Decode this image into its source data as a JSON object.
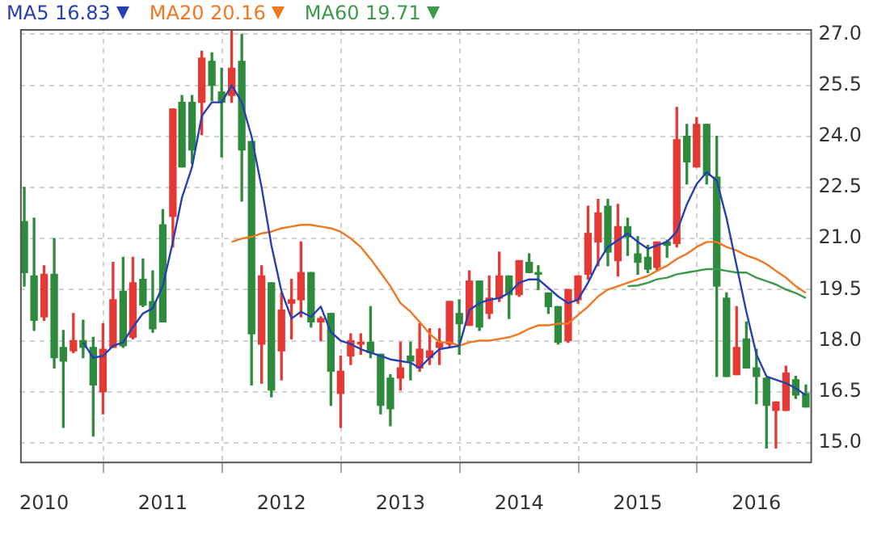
{
  "chart_data": {
    "type": "candlestick",
    "x": [
      "2009-11",
      "2009-12",
      "2010-01",
      "2010-02",
      "2010-03",
      "2010-04",
      "2010-05",
      "2010-06",
      "2010-07",
      "2010-08",
      "2010-09",
      "2010-10",
      "2010-11",
      "2010-12",
      "2011-01",
      "2011-02",
      "2011-03",
      "2011-04",
      "2011-05",
      "2011-06",
      "2011-07",
      "2011-08",
      "2011-09",
      "2011-10",
      "2011-11",
      "2011-12",
      "2012-01",
      "2012-02",
      "2012-03",
      "2012-04",
      "2012-05",
      "2012-06",
      "2012-07",
      "2012-08",
      "2012-09",
      "2012-10",
      "2012-11",
      "2012-12",
      "2013-01",
      "2013-02",
      "2013-03",
      "2013-04",
      "2013-05",
      "2013-06",
      "2013-07",
      "2013-08",
      "2013-09",
      "2013-10",
      "2013-11",
      "2013-12",
      "2014-01",
      "2014-02",
      "2014-03",
      "2014-04",
      "2014-05",
      "2014-06",
      "2014-07",
      "2014-08",
      "2014-09",
      "2014-10",
      "2014-11",
      "2014-12",
      "2015-01",
      "2015-02",
      "2015-03",
      "2015-04",
      "2015-05",
      "2015-06",
      "2015-07",
      "2015-08",
      "2015-09",
      "2015-10",
      "2015-11",
      "2015-12",
      "2016-01",
      "2016-02",
      "2016-03",
      "2016-04",
      "2016-05",
      "2016-06"
    ],
    "ohlc": [
      [
        21.5,
        22.5,
        19.6,
        20.0
      ],
      [
        19.9,
        21.6,
        18.3,
        18.6
      ],
      [
        18.7,
        20.2,
        18.6,
        19.95
      ],
      [
        19.95,
        21.0,
        17.2,
        17.5
      ],
      [
        17.8,
        18.3,
        15.45,
        17.4
      ],
      [
        17.7,
        18.8,
        17.65,
        18.0
      ],
      [
        18.0,
        18.6,
        17.5,
        17.8
      ],
      [
        17.8,
        18.1,
        15.2,
        16.7
      ],
      [
        16.5,
        18.5,
        15.85,
        17.75
      ],
      [
        17.8,
        20.3,
        17.8,
        19.2
      ],
      [
        19.45,
        20.45,
        17.8,
        17.85
      ],
      [
        18.1,
        20.45,
        18.05,
        19.7
      ],
      [
        19.8,
        20.4,
        19.0,
        19.05
      ],
      [
        19.15,
        20.05,
        18.25,
        18.35
      ],
      [
        21.4,
        21.85,
        18.55,
        18.55
      ],
      [
        21.65,
        24.8,
        20.75,
        24.8
      ],
      [
        25.0,
        25.2,
        23.1,
        23.1
      ],
      [
        25.0,
        25.2,
        23.2,
        23.6
      ],
      [
        25.0,
        26.5,
        24.05,
        26.3
      ],
      [
        26.2,
        26.45,
        25.05,
        25.5
      ],
      [
        25.3,
        26.0,
        23.4,
        25.0
      ],
      [
        25.2,
        27.1,
        25.0,
        26.0
      ],
      [
        26.2,
        27.0,
        22.1,
        23.6
      ],
      [
        23.85,
        23.85,
        16.7,
        18.2
      ],
      [
        17.9,
        20.2,
        16.75,
        19.9
      ],
      [
        19.7,
        19.7,
        16.35,
        16.55
      ],
      [
        17.7,
        19.4,
        16.85,
        18.9
      ],
      [
        19.1,
        19.8,
        18.05,
        19.2
      ],
      [
        19.2,
        20.9,
        18.7,
        20.0
      ],
      [
        20.0,
        20.0,
        18.4,
        18.55
      ],
      [
        18.55,
        18.7,
        18.0,
        18.65
      ],
      [
        18.8,
        18.8,
        16.1,
        17.1
      ],
      [
        16.45,
        17.55,
        15.45,
        17.1
      ],
      [
        17.55,
        18.2,
        17.3,
        18.0
      ],
      [
        17.9,
        18.2,
        17.6,
        17.95
      ],
      [
        17.95,
        19.0,
        17.5,
        17.65
      ],
      [
        17.6,
        17.6,
        15.85,
        16.1
      ],
      [
        16.9,
        17.0,
        15.5,
        16.0
      ],
      [
        16.9,
        17.95,
        16.55,
        17.2
      ],
      [
        17.55,
        17.95,
        16.85,
        17.4
      ],
      [
        17.2,
        18.5,
        17.1,
        17.75
      ],
      [
        17.5,
        18.35,
        17.3,
        17.7
      ],
      [
        17.8,
        18.35,
        17.3,
        17.95
      ],
      [
        17.9,
        19.15,
        17.8,
        19.15
      ],
      [
        18.8,
        19.2,
        17.6,
        18.5
      ],
      [
        18.45,
        20.05,
        18.45,
        19.75
      ],
      [
        19.75,
        19.75,
        18.3,
        18.4
      ],
      [
        18.8,
        19.9,
        18.65,
        19.25
      ],
      [
        19.25,
        20.6,
        19.15,
        19.9
      ],
      [
        19.9,
        19.9,
        18.65,
        19.35
      ],
      [
        19.35,
        20.35,
        19.3,
        20.35
      ],
      [
        20.3,
        20.55,
        20.0,
        20.0
      ],
      [
        20.0,
        20.2,
        19.5,
        19.95
      ],
      [
        19.4,
        19.4,
        18.8,
        19.0
      ],
      [
        19.0,
        19.0,
        17.9,
        17.95
      ],
      [
        18.0,
        19.5,
        17.95,
        19.5
      ],
      [
        19.2,
        19.9,
        19.1,
        19.9
      ],
      [
        19.95,
        21.95,
        19.8,
        21.15
      ],
      [
        20.9,
        22.15,
        20.2,
        21.75
      ],
      [
        21.95,
        22.15,
        20.2,
        20.6
      ],
      [
        20.35,
        22.0,
        19.9,
        21.35
      ],
      [
        21.35,
        21.6,
        20.5,
        21.05
      ],
      [
        20.55,
        21.05,
        19.95,
        20.3
      ],
      [
        20.45,
        20.8,
        20.0,
        20.1
      ],
      [
        20.15,
        20.9,
        20.05,
        20.9
      ],
      [
        20.9,
        20.95,
        20.45,
        20.8
      ],
      [
        20.85,
        24.85,
        20.75,
        23.9
      ],
      [
        24.0,
        24.35,
        22.6,
        23.25
      ],
      [
        23.1,
        24.55,
        23.1,
        24.35
      ],
      [
        24.35,
        24.35,
        22.6,
        22.85
      ],
      [
        22.8,
        24.0,
        16.95,
        19.6
      ],
      [
        19.25,
        19.4,
        16.95,
        16.95
      ],
      [
        17.0,
        19.0,
        17.0,
        17.8
      ],
      [
        18.05,
        18.55,
        17.2,
        17.2
      ],
      [
        17.2,
        17.75,
        16.15,
        16.95
      ],
      [
        16.9,
        16.9,
        14.85,
        16.1
      ],
      [
        15.95,
        16.2,
        14.85,
        16.2
      ],
      [
        15.95,
        17.25,
        15.95,
        17.05
      ],
      [
        16.85,
        16.95,
        16.3,
        16.4
      ],
      [
        16.45,
        16.7,
        16.05,
        16.05
      ]
    ],
    "colors": [
      "#2e8b3e",
      "#2e8b3e",
      "#e53935",
      "#2e8b3e",
      "#2e8b3e",
      "#e53935",
      "#2e8b3e",
      "#2e8b3e",
      "#e53935",
      "#e53935",
      "#2e8b3e",
      "#e53935",
      "#2e8b3e",
      "#2e8b3e",
      "#2e8b3e",
      "#e53935",
      "#2e8b3e",
      "#2e8b3e",
      "#e53935",
      "#2e8b3e",
      "#2e8b3e",
      "#e53935",
      "#2e8b3e",
      "#2e8b3e",
      "#e53935",
      "#2e8b3e",
      "#e53935",
      "#e53935",
      "#e53935",
      "#2e8b3e",
      "#e53935",
      "#2e8b3e",
      "#e53935",
      "#e53935",
      "#e53935",
      "#2e8b3e",
      "#2e8b3e",
      "#2e8b3e",
      "#e53935",
      "#2e8b3e",
      "#e53935",
      "#e53935",
      "#e53935",
      "#e53935",
      "#2e8b3e",
      "#e53935",
      "#2e8b3e",
      "#e53935",
      "#e53935",
      "#2e8b3e",
      "#e53935",
      "#2e8b3e",
      "#2e8b3e",
      "#2e8b3e",
      "#2e8b3e",
      "#e53935",
      "#e53935",
      "#e53935",
      "#e53935",
      "#2e8b3e",
      "#e53935",
      "#2e8b3e",
      "#2e8b3e",
      "#2e8b3e",
      "#e53935",
      "#2e8b3e",
      "#e53935",
      "#2e8b3e",
      "#e53935",
      "#2e8b3e",
      "#2e8b3e",
      "#2e8b3e",
      "#e53935",
      "#2e8b3e",
      "#2e8b3e",
      "#2e8b3e",
      "#e53935",
      "#e53935",
      "#2e8b3e",
      "#2e8b3e"
    ],
    "series": [
      {
        "name": "MA5 16.83",
        "type": "line",
        "color": "#2740b0",
        "values": [
          null,
          null,
          null,
          null,
          null,
          null,
          17.95,
          17.5,
          17.55,
          17.85,
          17.95,
          18.4,
          18.8,
          18.95,
          19.6,
          20.9,
          22.2,
          23.1,
          24.6,
          25.0,
          25.0,
          25.5,
          25.0,
          24.0,
          22.5,
          20.8,
          19.45,
          18.65,
          18.85,
          18.7,
          19.0,
          18.25,
          18.0,
          17.9,
          17.75,
          17.65,
          17.55,
          17.45,
          17.4,
          17.35,
          17.2,
          17.5,
          17.75,
          17.8,
          17.85,
          18.9,
          19.1,
          19.2,
          19.25,
          19.4,
          19.7,
          19.8,
          19.8,
          19.55,
          19.3,
          19.1,
          19.2,
          19.7,
          20.3,
          20.75,
          20.95,
          21.15,
          20.9,
          20.7,
          20.8,
          20.9,
          21.2,
          22.0,
          22.6,
          22.95,
          22.7,
          21.6,
          20.2,
          18.85,
          17.6,
          16.95,
          16.85,
          16.75,
          16.6,
          16.4
        ]
      },
      {
        "name": "MA20 20.16",
        "type": "line",
        "color": "#f07820",
        "values": [
          null,
          null,
          null,
          null,
          null,
          null,
          null,
          null,
          null,
          null,
          null,
          null,
          null,
          null,
          null,
          null,
          null,
          null,
          null,
          null,
          null,
          20.9,
          21.0,
          21.05,
          21.15,
          21.2,
          21.3,
          21.35,
          21.4,
          21.4,
          21.35,
          21.3,
          21.2,
          21.0,
          20.75,
          20.4,
          20.0,
          19.6,
          19.1,
          18.85,
          18.55,
          18.2,
          17.95,
          17.95,
          17.85,
          17.95,
          18.0,
          18.0,
          18.05,
          18.1,
          18.2,
          18.35,
          18.45,
          18.45,
          18.5,
          18.5,
          18.75,
          19.0,
          19.3,
          19.5,
          19.6,
          19.7,
          19.8,
          19.9,
          20.05,
          20.2,
          20.4,
          20.55,
          20.75,
          20.9,
          20.9,
          20.75,
          20.65,
          20.5,
          20.4,
          20.25,
          20.05,
          19.85,
          19.6,
          19.4
        ]
      },
      {
        "name": "MA60 19.71",
        "type": "line",
        "color": "#3c9a4a",
        "values": [
          null,
          null,
          null,
          null,
          null,
          null,
          null,
          null,
          null,
          null,
          null,
          null,
          null,
          null,
          null,
          null,
          null,
          null,
          null,
          null,
          null,
          null,
          null,
          null,
          null,
          null,
          null,
          null,
          null,
          null,
          null,
          null,
          null,
          null,
          null,
          null,
          null,
          null,
          null,
          null,
          null,
          null,
          null,
          null,
          null,
          null,
          null,
          null,
          null,
          null,
          null,
          null,
          null,
          null,
          null,
          null,
          null,
          null,
          null,
          null,
          null,
          19.6,
          19.62,
          19.7,
          19.8,
          19.85,
          19.95,
          20.0,
          20.05,
          20.1,
          20.1,
          20.05,
          20.0,
          20.0,
          19.85,
          19.75,
          19.65,
          19.5,
          19.4,
          19.25
        ]
      }
    ],
    "xlim": [
      "2009-10-19",
      "2016-06-20"
    ],
    "xticks": [
      "2010",
      "2011",
      "2012",
      "2013",
      "2014",
      "2015",
      "2016"
    ],
    "ylim": [
      14.4,
      27.15
    ],
    "yticks": [
      {
        "value": 15,
        "label": "15.0"
      },
      {
        "value": 16.5,
        "label": "16.5"
      },
      {
        "value": 18,
        "label": "18.0"
      },
      {
        "value": 19.5,
        "label": "19.5"
      },
      {
        "value": 21,
        "label": "21.0"
      },
      {
        "value": 22.5,
        "label": "22.5"
      },
      {
        "value": 24,
        "label": "24.0"
      },
      {
        "value": 25.5,
        "label": "25.5"
      },
      {
        "value": 27,
        "label": "27.0"
      }
    ],
    "grid": true,
    "legend": "top left",
    "marker": "none"
  }
}
